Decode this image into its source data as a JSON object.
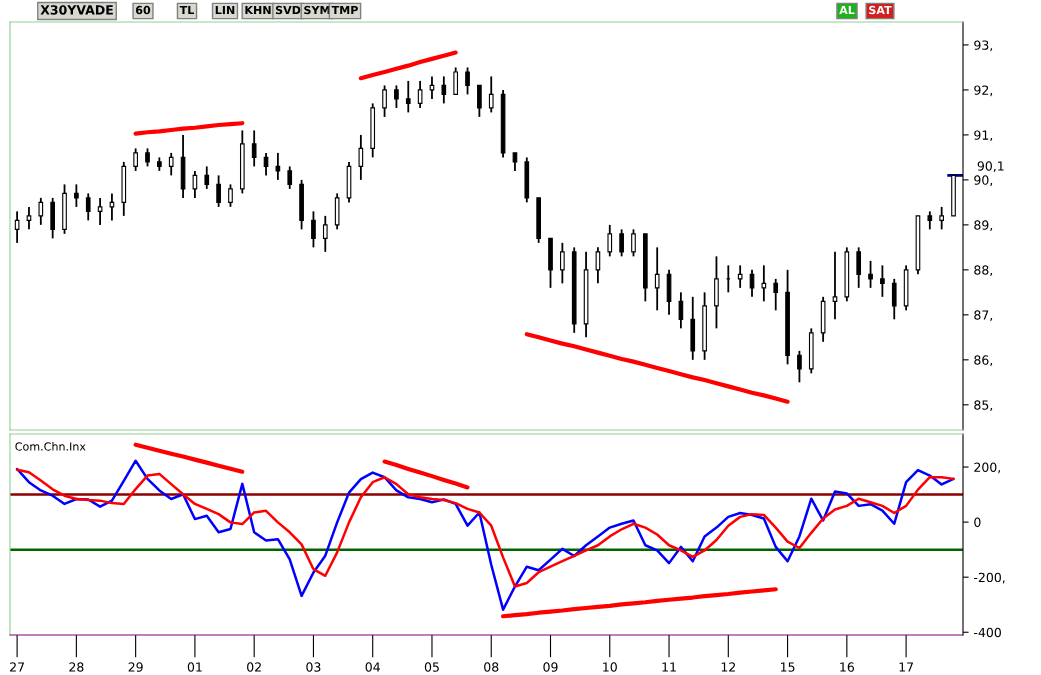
{
  "chart_data": [
    {
      "type": "candlestick",
      "title": "X30YVADE",
      "annotations": [
        "60",
        "TL",
        "LIN",
        "KHN",
        "SVD",
        "SYM",
        "TMP",
        "AL",
        "SAT"
      ],
      "color": "#000000",
      "categories": [
        "27",
        null,
        null,
        null,
        null,
        "28",
        null,
        null,
        null,
        null,
        "29",
        null,
        null,
        null,
        null,
        "01",
        null,
        null,
        null,
        null,
        "02",
        null,
        null,
        null,
        null,
        "03",
        null,
        null,
        null,
        null,
        "04",
        null,
        null,
        null,
        null,
        "05",
        null,
        null,
        null,
        null,
        "08",
        null,
        null,
        null,
        null,
        "09",
        null,
        null,
        null,
        null,
        "10",
        null,
        null,
        null,
        null,
        "11",
        null,
        null,
        null,
        null,
        "12",
        null,
        null,
        null,
        null,
        "15",
        null,
        null,
        null,
        null,
        "16",
        null,
        null,
        null,
        null,
        "17",
        null,
        null,
        null,
        null
      ],
      "ohlc": [
        [
          88.9,
          89.3,
          88.6,
          89.1
        ],
        [
          89.1,
          89.4,
          88.9,
          89.2
        ],
        [
          89.2,
          89.6,
          89.0,
          89.5
        ],
        [
          89.5,
          89.6,
          88.7,
          88.9
        ],
        [
          88.9,
          89.9,
          88.8,
          89.7
        ],
        [
          89.7,
          89.9,
          89.4,
          89.6
        ],
        [
          89.6,
          89.7,
          89.1,
          89.3
        ],
        [
          89.3,
          89.6,
          89.0,
          89.4
        ],
        [
          89.4,
          89.7,
          89.1,
          89.5
        ],
        [
          89.5,
          90.4,
          89.2,
          90.3
        ],
        [
          90.3,
          90.7,
          90.2,
          90.6
        ],
        [
          90.6,
          90.7,
          90.3,
          90.4
        ],
        [
          90.4,
          90.5,
          90.2,
          90.3
        ],
        [
          90.3,
          90.6,
          90.1,
          90.5
        ],
        [
          90.5,
          91.0,
          89.6,
          89.8
        ],
        [
          89.8,
          90.2,
          89.6,
          90.1
        ],
        [
          90.1,
          90.3,
          89.8,
          89.9
        ],
        [
          89.9,
          90.1,
          89.4,
          89.5
        ],
        [
          89.5,
          89.9,
          89.4,
          89.8
        ],
        [
          89.8,
          91.1,
          89.7,
          90.8
        ],
        [
          90.8,
          91.1,
          90.3,
          90.5
        ],
        [
          90.5,
          90.6,
          90.1,
          90.3
        ],
        [
          90.3,
          90.6,
          90.0,
          90.2
        ],
        [
          90.2,
          90.3,
          89.8,
          89.9
        ],
        [
          89.9,
          90.0,
          88.9,
          89.1
        ],
        [
          89.1,
          89.3,
          88.5,
          88.7
        ],
        [
          88.7,
          89.2,
          88.4,
          89.0
        ],
        [
          89.0,
          89.7,
          88.9,
          89.6
        ],
        [
          89.6,
          90.4,
          89.5,
          90.3
        ],
        [
          90.3,
          91.0,
          90.0,
          90.7
        ],
        [
          90.7,
          91.7,
          90.5,
          91.6
        ],
        [
          91.6,
          92.1,
          91.4,
          92.0
        ],
        [
          92.0,
          92.1,
          91.6,
          91.8
        ],
        [
          91.8,
          92.2,
          91.5,
          91.7
        ],
        [
          91.7,
          92.2,
          91.6,
          92.0
        ],
        [
          92.0,
          92.3,
          91.8,
          92.1
        ],
        [
          92.1,
          92.3,
          91.7,
          91.9
        ],
        [
          91.9,
          92.5,
          91.9,
          92.4
        ],
        [
          92.4,
          92.5,
          91.9,
          92.1
        ],
        [
          92.1,
          92.1,
          91.4,
          91.6
        ],
        [
          91.6,
          92.3,
          91.5,
          91.9
        ],
        [
          91.9,
          92.0,
          90.5,
          90.6
        ],
        [
          90.6,
          90.6,
          90.2,
          90.4
        ],
        [
          90.4,
          90.5,
          89.5,
          89.6
        ],
        [
          89.6,
          89.6,
          88.6,
          88.7
        ],
        [
          88.7,
          88.7,
          87.6,
          88.0
        ],
        [
          88.0,
          88.6,
          87.7,
          88.4
        ],
        [
          88.4,
          88.5,
          86.6,
          86.8
        ],
        [
          86.8,
          88.4,
          86.5,
          88.0
        ],
        [
          88.0,
          88.5,
          87.7,
          88.4
        ],
        [
          88.4,
          89.0,
          88.3,
          88.8
        ],
        [
          88.8,
          88.9,
          88.3,
          88.4
        ],
        [
          88.4,
          88.9,
          88.3,
          88.8
        ],
        [
          88.8,
          88.8,
          87.3,
          87.6
        ],
        [
          87.6,
          88.5,
          87.1,
          87.9
        ],
        [
          87.9,
          88.0,
          87.0,
          87.3
        ],
        [
          87.3,
          87.5,
          86.7,
          86.9
        ],
        [
          86.9,
          87.4,
          86.0,
          86.2
        ],
        [
          86.2,
          87.5,
          86.0,
          87.2
        ],
        [
          87.2,
          88.3,
          86.7,
          87.8
        ],
        [
          87.8,
          88.1,
          87.5,
          87.8
        ],
        [
          87.8,
          88.1,
          87.6,
          87.9
        ],
        [
          87.9,
          88.0,
          87.4,
          87.6
        ],
        [
          87.6,
          88.1,
          87.3,
          87.7
        ],
        [
          87.7,
          87.8,
          87.1,
          87.5
        ],
        [
          87.5,
          88.0,
          85.9,
          86.1
        ],
        [
          86.1,
          86.2,
          85.5,
          85.8
        ],
        [
          85.8,
          86.7,
          85.7,
          86.6
        ],
        [
          86.6,
          87.4,
          86.4,
          87.3
        ],
        [
          87.3,
          88.4,
          86.9,
          87.4
        ],
        [
          87.4,
          88.5,
          87.3,
          88.4
        ],
        [
          88.4,
          88.5,
          87.6,
          87.9
        ],
        [
          87.9,
          88.2,
          87.6,
          87.8
        ],
        [
          87.8,
          88.1,
          87.4,
          87.7
        ],
        [
          87.7,
          87.8,
          86.9,
          87.2
        ],
        [
          87.2,
          88.1,
          87.1,
          88.0
        ],
        [
          88.0,
          89.2,
          87.9,
          89.2
        ],
        [
          89.2,
          89.3,
          88.9,
          89.1
        ],
        [
          89.1,
          89.4,
          88.9,
          89.2
        ],
        [
          89.2,
          90.1,
          89.2,
          90.1
        ]
      ],
      "series": [
        {
          "type": "line",
          "color": "#ff0000",
          "values": [
            null,
            null,
            null,
            null,
            null,
            null,
            null,
            null,
            null,
            null,
            91.03,
            91.06,
            91.08,
            91.11,
            91.14,
            91.16,
            91.19,
            91.22,
            91.24,
            91.26,
            null,
            null,
            null,
            null,
            null,
            null,
            null,
            null,
            null,
            null,
            null,
            null,
            null,
            null,
            null,
            null,
            null,
            null,
            null,
            null,
            null,
            null,
            null,
            null,
            null,
            null,
            null,
            null,
            null,
            null,
            null,
            null,
            null,
            null,
            null,
            null,
            null,
            null,
            null,
            null,
            null,
            null,
            null,
            null,
            null,
            null,
            null,
            null,
            null,
            null,
            null,
            null,
            null,
            null,
            null,
            null,
            null,
            null,
            null,
            null
          ]
        },
        {
          "type": "line",
          "color": "#ff0000",
          "values": [
            null,
            null,
            null,
            null,
            null,
            null,
            null,
            null,
            null,
            null,
            null,
            null,
            null,
            null,
            null,
            null,
            null,
            null,
            null,
            null,
            null,
            null,
            null,
            null,
            null,
            null,
            null,
            null,
            null,
            92.26,
            92.33,
            92.4,
            92.47,
            92.54,
            92.62,
            92.69,
            92.76,
            92.83,
            null,
            null,
            null,
            null,
            null,
            null,
            null,
            null,
            null,
            null,
            null,
            null,
            null,
            null,
            null,
            null,
            null,
            null,
            null,
            null,
            null,
            null,
            null,
            null,
            null,
            null,
            null,
            null,
            null,
            null,
            null,
            null,
            null,
            null,
            null,
            null,
            null,
            null,
            null,
            null,
            null,
            null
          ]
        },
        {
          "type": "line",
          "color": "#ff0000",
          "values": [
            null,
            null,
            null,
            null,
            null,
            null,
            null,
            null,
            null,
            null,
            null,
            null,
            null,
            null,
            null,
            null,
            null,
            null,
            null,
            null,
            null,
            null,
            null,
            null,
            null,
            null,
            null,
            null,
            null,
            null,
            null,
            null,
            null,
            null,
            null,
            null,
            null,
            null,
            null,
            null,
            null,
            null,
            null,
            86.57,
            86.5,
            86.43,
            86.36,
            86.3,
            86.23,
            86.16,
            86.09,
            86.02,
            85.96,
            85.89,
            85.82,
            85.75,
            85.68,
            85.61,
            85.55,
            85.48,
            85.41,
            85.34,
            85.27,
            85.21,
            85.14,
            85.07,
            null,
            null,
            null,
            null,
            null,
            null,
            null,
            null,
            null,
            null,
            null,
            null,
            null,
            null
          ]
        }
      ],
      "ref_lines": [
        {
          "axis": "y",
          "value": 90.1,
          "label": "90,1",
          "color": "#000080"
        }
      ],
      "ylim": [
        84.44,
        93.51
      ],
      "yticks": [
        {
          "value": 85,
          "label": "85,"
        },
        {
          "value": 86,
          "label": "86,"
        },
        {
          "value": 87,
          "label": "87,"
        },
        {
          "value": 88,
          "label": "88,"
        },
        {
          "value": 89,
          "label": "89,"
        },
        {
          "value": 90,
          "label": "90,"
        },
        {
          "value": 91,
          "label": "91,"
        },
        {
          "value": 92,
          "label": "92,"
        },
        {
          "value": 93,
          "label": "93,"
        }
      ],
      "tick_labels": "y"
    },
    {
      "type": "line",
      "annotations": [
        "Com.Chn.Inx"
      ],
      "categories": [
        "27",
        null,
        null,
        null,
        null,
        "28",
        null,
        null,
        null,
        null,
        "29",
        null,
        null,
        null,
        null,
        "01",
        null,
        null,
        null,
        null,
        "02",
        null,
        null,
        null,
        null,
        "03",
        null,
        null,
        null,
        null,
        "04",
        null,
        null,
        null,
        null,
        "05",
        null,
        null,
        null,
        null,
        "08",
        null,
        null,
        null,
        null,
        "09",
        null,
        null,
        null,
        null,
        "10",
        null,
        null,
        null,
        null,
        "11",
        null,
        null,
        null,
        null,
        "12",
        null,
        null,
        null,
        null,
        "15",
        null,
        null,
        null,
        null,
        "16",
        null,
        null,
        null,
        null,
        "17",
        null,
        null,
        null,
        null
      ],
      "series": [
        {
          "color": "#0000ff",
          "values": [
            193,
            145,
            115,
            96,
            66,
            84,
            82,
            56,
            78,
            150,
            223,
            157,
            115,
            84,
            101,
            11,
            23,
            -37,
            -25,
            139,
            -37,
            -67,
            -62,
            -135,
            -268,
            -183,
            -122,
            -1,
            107,
            156,
            180,
            163,
            115,
            90,
            84,
            72,
            82,
            66,
            -13,
            35,
            -155,
            -318,
            -234,
            -162,
            -175,
            -136,
            -97,
            -123,
            -84,
            -52,
            -20,
            -6,
            6,
            -84,
            -103,
            -149,
            -90,
            -142,
            -52,
            -20,
            19,
            33,
            26,
            13,
            -90,
            -142,
            -52,
            85,
            6,
            111,
            104,
            59,
            65,
            42,
            -6,
            145,
            189,
            169,
            137,
            157
          ]
        },
        {
          "color": "#ff0000",
          "values": [
            190,
            181,
            151,
            119,
            96,
            84,
            80,
            78,
            69,
            66,
            120,
            169,
            175,
            138,
            101,
            66,
            48,
            29,
            -1,
            -7,
            35,
            41,
            -1,
            -37,
            -81,
            -171,
            -195,
            -110,
            -1,
            90,
            145,
            163,
            138,
            101,
            90,
            84,
            80,
            69,
            48,
            35,
            -13,
            -128,
            -234,
            -221,
            -182,
            -162,
            -142,
            -123,
            -103,
            -84,
            -52,
            -26,
            -6,
            -20,
            -45,
            -84,
            -103,
            -126,
            -103,
            -65,
            -13,
            19,
            29,
            26,
            -20,
            -71,
            -94,
            -39,
            13,
            46,
            59,
            85,
            72,
            59,
            33,
            59,
            118,
            163,
            163,
            157
          ]
        },
        {
          "type": "line",
          "color": "#ff0000",
          "values": [
            null,
            null,
            null,
            null,
            null,
            null,
            null,
            null,
            null,
            null,
            281,
            270,
            259,
            248,
            238,
            227,
            216,
            205,
            194,
            183,
            null,
            null,
            null,
            null,
            null,
            null,
            null,
            null,
            null,
            null,
            null,
            null,
            null,
            null,
            null,
            null,
            null,
            null,
            null,
            null,
            null,
            null,
            null,
            null,
            null,
            null,
            null,
            null,
            null,
            null,
            null,
            null,
            null,
            null,
            null,
            null,
            null,
            null,
            null,
            null,
            null,
            null,
            null,
            null,
            null,
            null,
            null,
            null,
            null,
            null,
            null,
            null,
            null,
            null,
            null,
            null,
            null,
            null,
            null,
            null
          ]
        },
        {
          "type": "line",
          "color": "#ff0000",
          "values": [
            null,
            null,
            null,
            null,
            null,
            null,
            null,
            null,
            null,
            null,
            null,
            null,
            null,
            null,
            null,
            null,
            null,
            null,
            null,
            null,
            null,
            null,
            null,
            null,
            null,
            null,
            null,
            null,
            null,
            null,
            null,
            220,
            207,
            193,
            180,
            167,
            153,
            140,
            126,
            null,
            null,
            null,
            null,
            null,
            null,
            null,
            null,
            null,
            null,
            null,
            null,
            null,
            null,
            null,
            null,
            null,
            null,
            null,
            null,
            null,
            null,
            null,
            null,
            null,
            null,
            null,
            null,
            null,
            null,
            null,
            null,
            null,
            null,
            null,
            null,
            null,
            null,
            null,
            null,
            null
          ]
        },
        {
          "type": "line",
          "color": "#ff0000",
          "values": [
            null,
            null,
            null,
            null,
            null,
            null,
            null,
            null,
            null,
            null,
            null,
            null,
            null,
            null,
            null,
            null,
            null,
            null,
            null,
            null,
            null,
            null,
            null,
            null,
            null,
            null,
            null,
            null,
            null,
            null,
            null,
            null,
            null,
            null,
            null,
            null,
            null,
            null,
            null,
            null,
            null,
            -342,
            -338,
            -334,
            -329,
            -325,
            -321,
            -316,
            -312,
            -308,
            -304,
            -299,
            -295,
            -291,
            -286,
            -282,
            -278,
            -274,
            -269,
            -265,
            -261,
            -256,
            -252,
            -248,
            -244,
            null,
            null,
            null,
            null,
            null,
            null,
            null,
            null,
            null,
            null,
            null,
            null,
            null,
            null,
            null
          ]
        }
      ],
      "ref_lines": [
        {
          "axis": "y",
          "value": 100,
          "color": "#8b0000"
        },
        {
          "axis": "y",
          "value": -100,
          "color": "#006400"
        }
      ],
      "ylim": [
        -410,
        320
      ],
      "yticks": [
        {
          "value": 200,
          "label": "200,"
        },
        {
          "value": 0,
          "label": "0"
        },
        {
          "value": -200,
          "label": "-200,"
        },
        {
          "value": -400,
          "label": "-400"
        }
      ]
    }
  ]
}
